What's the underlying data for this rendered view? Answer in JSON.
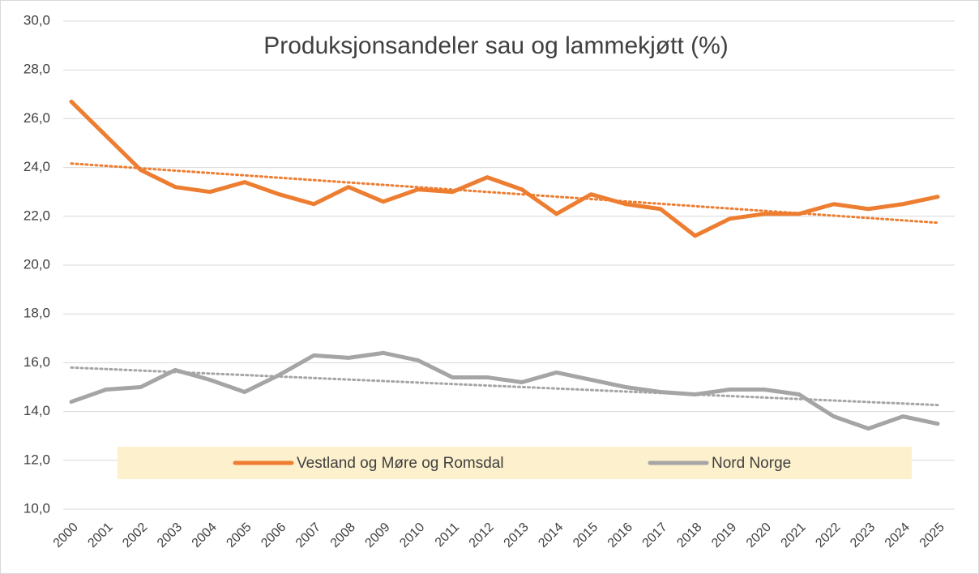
{
  "chart_data": {
    "type": "line",
    "title": "Produksjonsandeler sau og lammekjøtt (%)",
    "categories": [
      "2000",
      "2001",
      "2002",
      "2003",
      "2004",
      "2005",
      "2006",
      "2007",
      "2008",
      "2009",
      "2010",
      "2011",
      "2012",
      "2013",
      "2014",
      "2015",
      "2016",
      "2017",
      "2018",
      "2019",
      "2020",
      "2021",
      "2022",
      "2023",
      "2024",
      "2025"
    ],
    "series": [
      {
        "name": "Vestland og Møre og Romsdal",
        "color": "#ed7d31",
        "trendline": true,
        "values": [
          26.7,
          25.3,
          23.9,
          23.2,
          23.0,
          23.4,
          22.9,
          22.5,
          23.2,
          22.6,
          23.1,
          23.0,
          23.6,
          23.1,
          22.1,
          22.9,
          22.5,
          22.3,
          21.2,
          21.9,
          22.1,
          22.1,
          22.5,
          22.3,
          22.5,
          22.8
        ]
      },
      {
        "name": "Nord Norge",
        "color": "#a5a5a5",
        "trendline": true,
        "values": [
          14.4,
          14.9,
          15.0,
          15.7,
          15.3,
          14.8,
          15.5,
          16.3,
          16.2,
          16.4,
          16.1,
          15.4,
          15.4,
          15.2,
          15.6,
          15.3,
          15.0,
          14.8,
          14.7,
          14.9,
          14.9,
          14.7,
          13.8,
          13.3,
          13.8,
          13.5
        ]
      }
    ],
    "ylim": [
      10,
      30
    ],
    "yticks": [
      {
        "value": 10,
        "label": "10,0"
      },
      {
        "value": 12,
        "label": "12,0"
      },
      {
        "value": 14,
        "label": "14,0"
      },
      {
        "value": 16,
        "label": "16,0"
      },
      {
        "value": 18,
        "label": "18,0"
      },
      {
        "value": 20,
        "label": "20,0"
      },
      {
        "value": 22,
        "label": "22,0"
      },
      {
        "value": 24,
        "label": "24,0"
      },
      {
        "value": 26,
        "label": "26,0"
      },
      {
        "value": 28,
        "label": "28,0"
      },
      {
        "value": 30,
        "label": "30,0"
      }
    ],
    "grid": true,
    "legend": "bottom"
  }
}
